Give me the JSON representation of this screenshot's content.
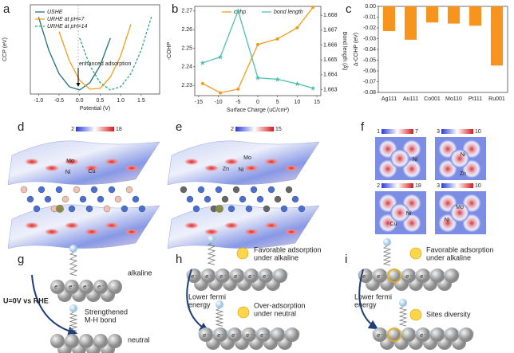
{
  "chart_data": [
    {
      "type": "line",
      "xlabel": "Potential (V)",
      "ylabel": "CCP (eV)",
      "x": [
        -1.0,
        -0.75,
        -0.5,
        -0.25,
        0.0,
        0.25,
        0.5,
        0.75,
        1.0,
        1.25,
        1.5,
        1.75
      ],
      "series": [
        {
          "name": "USHE",
          "color": "#23707a",
          "linestyle": "solid",
          "values": [
            9.0,
            4.9,
            2.0,
            0.4,
            0.0,
            0.9,
            3.0,
            6.4,
            null,
            null,
            null,
            null
          ]
        },
        {
          "name": "URHE at pH=7",
          "color": "#f39c1b",
          "linestyle": "solid",
          "values": [
            null,
            null,
            7.2,
            3.6,
            1.2,
            0.1,
            0.2,
            1.6,
            4.2,
            8.1,
            null,
            null
          ]
        },
        {
          "name": "URHE at pH=14",
          "color": "#2aa876",
          "linestyle": "dashed",
          "values": [
            null,
            null,
            null,
            null,
            6.4,
            3.0,
            0.9,
            0.0,
            0.4,
            2.0,
            4.9,
            9.0
          ]
        }
      ],
      "xlim": [
        -1.2,
        1.95
      ],
      "ylim": [
        -0.5,
        10.5
      ],
      "xticks": [
        {
          "value": -1,
          "label": "-1.0"
        },
        -0.5,
        {
          "value": 0,
          "label": "0.0"
        },
        0.5,
        {
          "value": 1,
          "label": "1.0"
        },
        1.5
      ],
      "annotation": "enhanced adsorption",
      "legend": "upper left"
    },
    {
      "type": "line",
      "xlabel": "Surface Charge (uC/cm²)",
      "ylabel": "-COHP",
      "y2label": "Bond length (Å)",
      "x": [
        -14,
        -9.5,
        -5,
        0,
        5,
        10,
        14
      ],
      "series": [
        {
          "name": "cohp",
          "color": "#f39c1b",
          "linestyle": "solid",
          "marker": "o",
          "values": [
            2.231,
            2.226,
            2.228,
            2.252,
            2.255,
            2.261,
            2.272
          ]
        },
        {
          "name": "bond length",
          "color": "#4dbfb0",
          "linestyle": "solid",
          "marker": "*",
          "axis": "y2",
          "values": [
            1.6648,
            1.6652,
            1.6683,
            1.6638,
            1.6637,
            1.6634,
            1.6631
          ]
        }
      ],
      "xlim": [
        -16,
        16
      ],
      "ylim": [
        2.2245,
        2.2725
      ],
      "y2lim": [
        1.6626,
        1.6686
      ],
      "xticks": [
        -15,
        -10,
        -5,
        0,
        5,
        10,
        15
      ],
      "yticks": [
        2.23,
        2.24,
        2.25,
        2.26,
        2.27
      ],
      "y2ticks": [
        1.663,
        1.664,
        1.665,
        1.666,
        1.667,
        1.668
      ],
      "legend": "upper center"
    },
    {
      "type": "bar",
      "ylabel": "Δ-COHP (eV)",
      "color": "#f7941d",
      "categories": [
        "Ag111",
        "Au111",
        "Co001",
        "Mo110",
        "Pt111",
        "Ru001"
      ],
      "values": [
        -0.023,
        -0.031,
        -0.015,
        -0.016,
        -0.018,
        -0.055
      ],
      "ylim": [
        -0.08,
        0
      ],
      "yticks": [
        -0.08,
        -0.07,
        -0.06,
        -0.05,
        -0.04,
        -0.03,
        -0.02,
        -0.01,
        {
          "value": 0,
          "label": "0.00"
        }
      ]
    }
  ],
  "panel_letters": [
    "a",
    "b",
    "c",
    "d",
    "e",
    "f",
    "g",
    "h",
    "i"
  ],
  "panel_d": {
    "colorbar": [
      2,
      18
    ],
    "atoms": [
      "Mo",
      "Ni",
      "Cu"
    ]
  },
  "panel_e": {
    "colorbar": [
      2,
      15
    ],
    "atoms": [
      "Mo",
      "Zn",
      "Ni"
    ]
  },
  "panel_f": {
    "maps": [
      {
        "colorbar": [
          1,
          7
        ],
        "atoms": [
          "Ni"
        ]
      },
      {
        "colorbar": [
          3,
          10
        ],
        "atoms": [
          "Ni",
          "Zn"
        ]
      },
      {
        "colorbar": [
          2,
          18
        ],
        "atoms": [
          "Ni",
          "Cu"
        ]
      },
      {
        "colorbar": [
          3,
          10
        ],
        "atoms": [
          "Mo",
          "Ni"
        ]
      }
    ]
  },
  "electron": "e⁻",
  "panel_g": {
    "top": "alkaline",
    "arrow": "U=0V vs RHE",
    "note": [
      "Strengthened",
      "M-H bond"
    ],
    "bottom": "neutral"
  },
  "panel_h": {
    "top": [
      "Favorable adsorption",
      "under alkaline"
    ],
    "arrow": [
      "Lower fermi",
      "energy"
    ],
    "bottom": [
      "Over-adsorption",
      "under neutral"
    ]
  },
  "panel_i": {
    "top": [
      "Favorable adsorption",
      "under alkaline"
    ],
    "arrow": [
      "Lower fermi",
      "energy"
    ],
    "bottom": "Sites diversity"
  }
}
